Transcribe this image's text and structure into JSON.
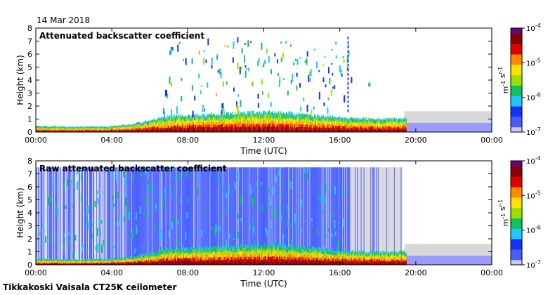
{
  "date_label": "14 Mar 2018",
  "footer_label": "Tikkakoski Vaisala CT25K ceilometer",
  "chart_data": [
    {
      "type": "heatmap",
      "title": "Attenuated backscatter coefficient",
      "xlabel": "Time (UTC)",
      "ylabel": "Height (km)",
      "xlim": [
        0,
        24
      ],
      "ylim": [
        0,
        8
      ],
      "xticks": [
        0,
        4,
        8,
        12,
        16,
        20,
        24
      ],
      "xtick_labels": [
        "00:00",
        "04:00",
        "08:00",
        "12:00",
        "16:00",
        "20:00",
        "00:00"
      ],
      "yticks": [
        0,
        1,
        2,
        3,
        4,
        5,
        6,
        7,
        8
      ],
      "ytick_labels": [
        "0",
        "1",
        "2",
        "3",
        "4",
        "5",
        "6",
        "7",
        "8"
      ],
      "colorbar": {
        "scale": "log",
        "range": [
          1e-07,
          0.0001
        ],
        "tick_values": [
          -7,
          -6,
          -5,
          -4
        ],
        "tick_labels": [
          "10-7",
          "10-6",
          "10-5",
          "10-4"
        ],
        "label": "m-1 sr-1"
      },
      "boundary_layer_top_km": [
        [
          0,
          0.45
        ],
        [
          2,
          0.4
        ],
        [
          4,
          0.45
        ],
        [
          5,
          0.6
        ],
        [
          6,
          0.9
        ],
        [
          7,
          1.25
        ],
        [
          9,
          1.35
        ],
        [
          12,
          1.55
        ],
        [
          14,
          1.4
        ],
        [
          16,
          1.1
        ],
        [
          18,
          1.0
        ],
        [
          19.5,
          1.05
        ]
      ],
      "features": [
        {
          "name": "precip-streaks",
          "t_start": 6.5,
          "t_end": 16.8,
          "h_top_km": 7.3
        },
        {
          "name": "cloud-16h",
          "t": 16.4,
          "h_bottom_km": 1.5,
          "h_top_km": 7.2
        },
        {
          "name": "cloud-17h30",
          "t": 17.5,
          "h_bottom_km": 3.5,
          "h_top_km": 3.8
        },
        {
          "name": "low-signal-gray",
          "t_start": 19.4,
          "t_end": 24,
          "h_top_km": 1.6
        }
      ]
    },
    {
      "type": "heatmap",
      "title": "Raw attenuated backscatter coefficient",
      "xlabel": "Time (UTC)",
      "ylabel": "Height (km)",
      "xlim": [
        0,
        24
      ],
      "ylim": [
        0,
        8
      ],
      "xticks": [
        0,
        4,
        8,
        12,
        16,
        20,
        24
      ],
      "xtick_labels": [
        "00:00",
        "04:00",
        "08:00",
        "12:00",
        "16:00",
        "20:00",
        "00:00"
      ],
      "yticks": [
        0,
        1,
        2,
        3,
        4,
        5,
        6,
        7,
        8
      ],
      "ytick_labels": [
        "0",
        "1",
        "2",
        "3",
        "4",
        "5",
        "6",
        "7",
        "8"
      ],
      "colorbar": {
        "scale": "log",
        "range": [
          1e-07,
          0.0001
        ],
        "tick_values": [
          -7,
          -6,
          -5,
          -4
        ],
        "tick_labels": [
          "10-7",
          "10-6",
          "10-5",
          "10-4"
        ],
        "label": "m-1 sr-1"
      },
      "boundary_layer_top_km": [
        [
          0,
          0.45
        ],
        [
          2,
          0.4
        ],
        [
          4,
          0.45
        ],
        [
          5,
          0.6
        ],
        [
          6,
          0.9
        ],
        [
          7,
          1.25
        ],
        [
          9,
          1.35
        ],
        [
          12,
          1.55
        ],
        [
          14,
          1.4
        ],
        [
          16,
          1.1
        ],
        [
          18,
          1.0
        ],
        [
          19.5,
          1.05
        ]
      ],
      "features": [
        {
          "name": "noise-blue",
          "t_start": 0,
          "t_end": 16.5,
          "h_top_km": 7.5
        },
        {
          "name": "noise-gray",
          "t_start": 16.5,
          "t_end": 19.3,
          "h_top_km": 7.5
        },
        {
          "name": "low-signal-gray",
          "t_start": 19.4,
          "t_end": 24,
          "h_top_km": 1.6
        }
      ]
    }
  ]
}
